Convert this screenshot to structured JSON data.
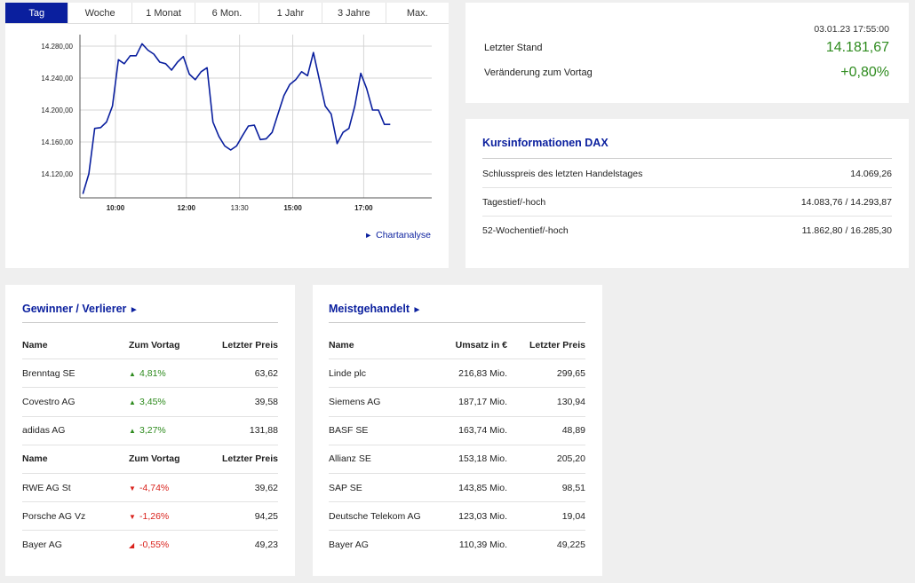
{
  "chart": {
    "tabs": [
      {
        "label": "Tag",
        "active": true
      },
      {
        "label": "Woche",
        "active": false
      },
      {
        "label": "1 Monat",
        "active": false
      },
      {
        "label": "6 Mon.",
        "active": false
      },
      {
        "label": "1 Jahr",
        "active": false
      },
      {
        "label": "3 Jahre",
        "active": false
      },
      {
        "label": "Max.",
        "active": false
      }
    ],
    "link_label": "Chartanalyse",
    "link_icon": "triangle-right-icon",
    "line_color": "#0a1f9e"
  },
  "chart_data": {
    "type": "line",
    "x": [
      "09:05",
      "09:15",
      "09:25",
      "09:35",
      "09:45",
      "09:55",
      "10:05",
      "10:15",
      "10:25",
      "10:35",
      "10:45",
      "10:55",
      "11:05",
      "11:15",
      "11:25",
      "11:35",
      "11:45",
      "11:55",
      "12:05",
      "12:15",
      "12:25",
      "12:35",
      "12:45",
      "12:55",
      "13:05",
      "13:15",
      "13:25",
      "13:35",
      "13:45",
      "13:55",
      "14:05",
      "14:15",
      "14:25",
      "14:35",
      "14:45",
      "14:55",
      "15:05",
      "15:15",
      "15:25",
      "15:35",
      "15:45",
      "15:55",
      "16:05",
      "16:15",
      "16:25",
      "16:35",
      "16:45",
      "16:55",
      "17:05",
      "17:15",
      "17:25",
      "17:35",
      "17:45"
    ],
    "values": [
      14095,
      14120,
      14177,
      14178,
      14185,
      14205,
      14263,
      14258,
      14268,
      14268,
      14283,
      14275,
      14270,
      14260,
      14258,
      14250,
      14260,
      14267,
      14245,
      14238,
      14248,
      14253,
      14185,
      14167,
      14155,
      14150,
      14155,
      14168,
      14180,
      14181,
      14163,
      14164,
      14172,
      14195,
      14218,
      14232,
      14238,
      14248,
      14243,
      14272,
      14238,
      14205,
      14195,
      14158,
      14172,
      14177,
      14205,
      14246,
      14227,
      14200,
      14200,
      14182,
      14182
    ],
    "x_ticks": [
      "10:00",
      "12:00",
      "13:30",
      "15:00",
      "17:00"
    ],
    "x_ticks_bold": [
      true,
      true,
      false,
      true,
      true
    ],
    "y_ticks": [
      "14.280,00",
      "14.240,00",
      "14.200,00",
      "14.160,00",
      "14.120,00"
    ],
    "y_tick_values": [
      14280,
      14240,
      14200,
      14160,
      14120
    ],
    "ylim": [
      14090,
      14290
    ],
    "grid": true
  },
  "quote": {
    "timestamp": "03.01.23 17:55:00",
    "last_label": "Letzter Stand",
    "last_value": "14.181,67",
    "change_label": "Veränderung zum Vortag",
    "change_value": "+0,80%",
    "positive_color": "#2e8b1e"
  },
  "info": {
    "title": "Kursinformationen DAX",
    "rows": [
      {
        "label": "Schlusspreis des letzten Handelstages",
        "value": "14.069,26"
      },
      {
        "label": "Tagestief/-hoch",
        "value": "14.083,76 / 14.293,87"
      },
      {
        "label": "52-Wochentief/-hoch",
        "value": "11.862,80 / 16.285,30"
      }
    ]
  },
  "winners_losers": {
    "title": "Gewinner / Verlierer",
    "title_icon": "triangle-right-icon",
    "headers": [
      "Name",
      "Zum Vortag",
      "Letzter Preis"
    ],
    "winners": [
      {
        "name": "Brenntag SE",
        "change": "4,81%",
        "price": "63,62",
        "icon": "triangle-up-icon"
      },
      {
        "name": "Covestro AG",
        "change": "3,45%",
        "price": "39,58",
        "icon": "triangle-up-icon"
      },
      {
        "name": "adidas AG",
        "change": "3,27%",
        "price": "131,88",
        "icon": "triangle-up-icon"
      }
    ],
    "losers": [
      {
        "name": "RWE AG St",
        "change": "-4,74%",
        "price": "39,62",
        "icon": "triangle-down-icon"
      },
      {
        "name": "Porsche AG Vz",
        "change": "-1,26%",
        "price": "94,25",
        "icon": "triangle-down-icon"
      },
      {
        "name": "Bayer AG",
        "change": "-0,55%",
        "price": "49,23",
        "icon": "triangle-down-icon"
      }
    ],
    "up_color": "#2e8b1e",
    "down_color": "#d9221c"
  },
  "most_traded": {
    "title": "Meistgehandelt",
    "title_icon": "triangle-right-icon",
    "headers": [
      "Name",
      "Umsatz in €",
      "Letzter Preis"
    ],
    "rows": [
      {
        "name": "Linde plc",
        "turnover": "216,83 Mio.",
        "price": "299,65"
      },
      {
        "name": "Siemens AG",
        "turnover": "187,17 Mio.",
        "price": "130,94"
      },
      {
        "name": "BASF SE",
        "turnover": "163,74 Mio.",
        "price": "48,89"
      },
      {
        "name": "Allianz SE",
        "turnover": "153,18 Mio.",
        "price": "205,20"
      },
      {
        "name": "SAP SE",
        "turnover": "143,85 Mio.",
        "price": "98,51"
      },
      {
        "name": "Deutsche Telekom AG",
        "turnover": "123,03 Mio.",
        "price": "19,04"
      },
      {
        "name": "Bayer AG",
        "turnover": "110,39 Mio.",
        "price": "49,225"
      }
    ]
  }
}
